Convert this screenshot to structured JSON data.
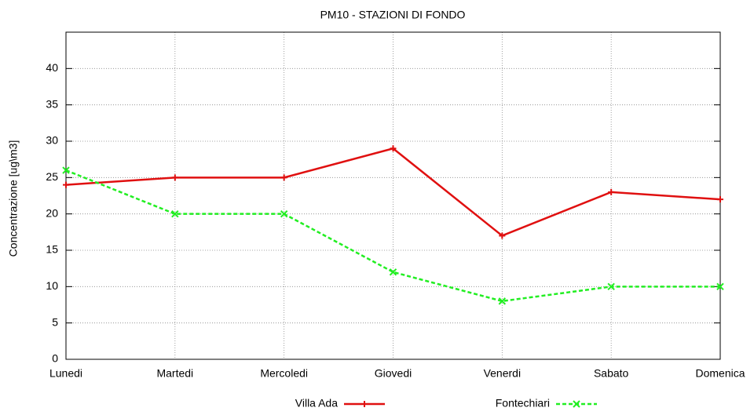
{
  "chart_data": {
    "type": "line",
    "title": "PM10 - STAZIONI DI FONDO",
    "y_label": "Concentrazione [ug\\m3]",
    "categories": [
      "Lunedi",
      "Martedi",
      "Mercoledi",
      "Giovedi",
      "Venerdi",
      "Sabato",
      "Domenica"
    ],
    "series": [
      {
        "name": "Villa Ada",
        "color": "#e01010",
        "dashed": false,
        "marker": "plus",
        "values": [
          24,
          25,
          25,
          29,
          17,
          23,
          22
        ]
      },
      {
        "name": "Fontechiari",
        "color": "#22ee22",
        "dashed": true,
        "marker": "cross",
        "values": [
          26,
          20,
          20,
          12,
          8,
          10,
          10
        ]
      }
    ],
    "ylim": [
      0,
      45
    ],
    "yticks": [
      0,
      5,
      10,
      15,
      20,
      25,
      30,
      35,
      40
    ],
    "grid": true,
    "legend": "bottom"
  }
}
